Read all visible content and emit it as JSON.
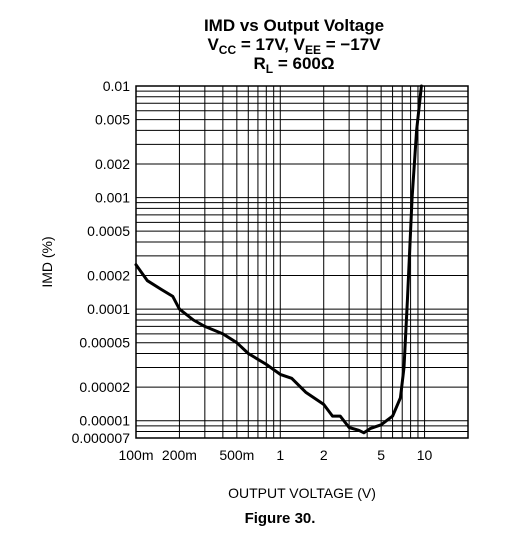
{
  "chart_data": {
    "type": "line",
    "title": {
      "line1": "IMD vs Output Voltage",
      "line2": {
        "v": "V",
        "cc": "CC",
        "mid": " = 17V, V",
        "ee": "EE",
        "end": " = −17V"
      },
      "line3": {
        "r": "R",
        "l": "L",
        "end": " = 600Ω"
      }
    },
    "xlabel": "OUTPUT VOLTAGE (V)",
    "ylabel": "IMD (%)",
    "x_scale": "log",
    "y_scale": "log",
    "xlim": [
      0.1,
      20
    ],
    "ylim": [
      7e-06,
      0.01
    ],
    "grid": true,
    "x_ticks": [
      {
        "value": 0.1,
        "label": "100m"
      },
      {
        "value": 0.2,
        "label": "200m"
      },
      {
        "value": 0.5,
        "label": "500m"
      },
      {
        "value": 1,
        "label": "1"
      },
      {
        "value": 2,
        "label": "2"
      },
      {
        "value": 5,
        "label": "5"
      },
      {
        "value": 10,
        "label": "10"
      }
    ],
    "y_ticks": [
      {
        "value": 0.01,
        "label": "0.01"
      },
      {
        "value": 0.005,
        "label": "0.005"
      },
      {
        "value": 0.002,
        "label": "0.002"
      },
      {
        "value": 0.001,
        "label": "0.001"
      },
      {
        "value": 0.0005,
        "label": "0.0005"
      },
      {
        "value": 0.0002,
        "label": "0.0002"
      },
      {
        "value": 0.0001,
        "label": "0.0001"
      },
      {
        "value": 5e-05,
        "label": "0.00005"
      },
      {
        "value": 2e-05,
        "label": "0.00002"
      },
      {
        "value": 1e-05,
        "label": "0.00001"
      },
      {
        "value": 7e-06,
        "label": "0.000007"
      }
    ],
    "series": [
      {
        "color": "#000000",
        "points": [
          [
            0.1,
            0.00025
          ],
          [
            0.12,
            0.00018
          ],
          [
            0.15,
            0.00015
          ],
          [
            0.18,
            0.00013
          ],
          [
            0.2,
            0.0001
          ],
          [
            0.25,
            8e-05
          ],
          [
            0.3,
            7e-05
          ],
          [
            0.4,
            6e-05
          ],
          [
            0.5,
            5e-05
          ],
          [
            0.6,
            4e-05
          ],
          [
            0.8,
            3.2e-05
          ],
          [
            1.0,
            2.6e-05
          ],
          [
            1.2,
            2.4e-05
          ],
          [
            1.5,
            1.8e-05
          ],
          [
            2.0,
            1.4e-05
          ],
          [
            2.3,
            1.1e-05
          ],
          [
            2.6,
            1.1e-05
          ],
          [
            3.0,
            8.7e-06
          ],
          [
            3.5,
            8.2e-06
          ],
          [
            3.8,
            7.8e-06
          ],
          [
            4.2,
            8.5e-06
          ],
          [
            5.0,
            9.2e-06
          ],
          [
            6.0,
            1.1e-05
          ],
          [
            6.8,
            1.6e-05
          ],
          [
            7.2,
            3e-05
          ],
          [
            7.6,
            0.00012
          ],
          [
            8.2,
            0.001
          ],
          [
            8.8,
            0.004
          ],
          [
            9.5,
            0.01
          ]
        ]
      }
    ]
  },
  "caption": "Figure 30."
}
